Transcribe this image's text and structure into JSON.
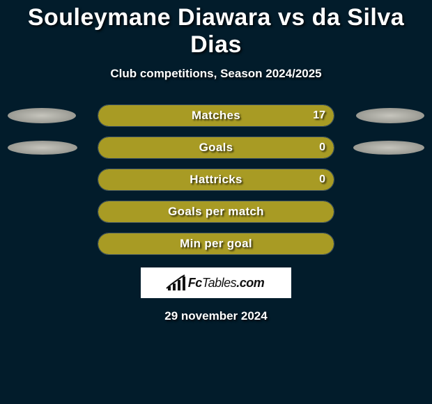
{
  "title": "Souleymane Diawara vs da Silva Dias",
  "subtitle": "Club competitions, Season 2024/2025",
  "date": "29 november 2024",
  "colors": {
    "background": "#021c2b",
    "bar_fill": "#a89b24",
    "bar_border": "rgba(255,255,255,.25)",
    "ellipse": "#b8b7af",
    "text": "#ffffff"
  },
  "rows": [
    {
      "label": "Matches",
      "left_value": null,
      "right_value": "17",
      "left_fill_pct": 0,
      "right_fill_pct": 100,
      "fill_color": "#a89b24",
      "left_ellipse_w": 98,
      "left_ellipse_h": 22,
      "right_ellipse_w": 98,
      "right_ellipse_h": 22
    },
    {
      "label": "Goals",
      "left_value": null,
      "right_value": "0",
      "left_fill_pct": 0,
      "right_fill_pct": 100,
      "fill_color": "#a89b24",
      "left_ellipse_w": 100,
      "left_ellipse_h": 20,
      "right_ellipse_w": 102,
      "right_ellipse_h": 20
    },
    {
      "label": "Hattricks",
      "left_value": null,
      "right_value": "0",
      "left_fill_pct": 0,
      "right_fill_pct": 100,
      "fill_color": "#a89b24",
      "left_ellipse_w": 0,
      "left_ellipse_h": 0,
      "right_ellipse_w": 0,
      "right_ellipse_h": 0
    },
    {
      "label": "Goals per match",
      "left_value": null,
      "right_value": null,
      "left_fill_pct": 0,
      "right_fill_pct": 100,
      "fill_color": "#a89b24",
      "left_ellipse_w": 0,
      "left_ellipse_h": 0,
      "right_ellipse_w": 0,
      "right_ellipse_h": 0
    },
    {
      "label": "Min per goal",
      "left_value": null,
      "right_value": null,
      "left_fill_pct": 0,
      "right_fill_pct": 100,
      "fill_color": "#a89b24",
      "left_ellipse_w": 0,
      "left_ellipse_h": 0,
      "right_ellipse_w": 0,
      "right_ellipse_h": 0
    }
  ],
  "logo_text": "FcTables.com",
  "logo_bar_heights": [
    6,
    10,
    15,
    20
  ]
}
